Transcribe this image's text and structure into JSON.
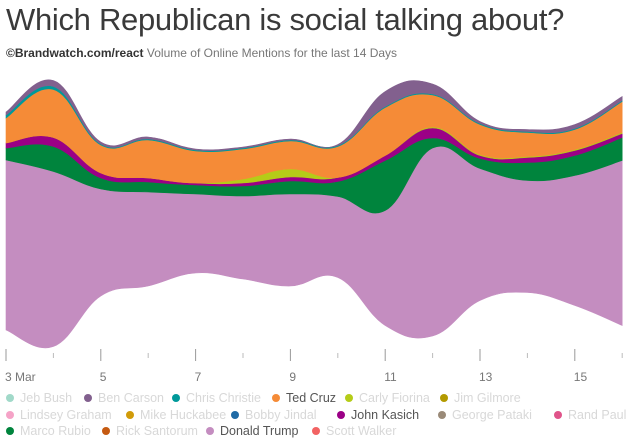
{
  "header": {
    "title": "Which Republican is social talking about?",
    "source": "©Brandwatch.com/react",
    "subtitle": "Volume of Online Mentions for the last 14 Days"
  },
  "chart_data": {
    "type": "area",
    "subtype": "streamgraph",
    "title": "Which Republican is social talking about?",
    "subtitle": "Volume of Online Mentions for the last 14 Days",
    "xlabel": "",
    "ylabel": "",
    "x": [
      "3 Mar",
      "4",
      "5",
      "6",
      "7",
      "8",
      "9",
      "10",
      "11",
      "12",
      "13",
      "14",
      "15",
      "16"
    ],
    "tick_labels": [
      "3 Mar",
      "5",
      "7",
      "9",
      "11",
      "13",
      "15"
    ],
    "grid": false,
    "legend_position": "bottom",
    "series": [
      {
        "name": "Donald Trump",
        "color": "#c48dc0",
        "active": true,
        "values": [
          170,
          175,
          107,
          94,
          79,
          83,
          92,
          81,
          115,
          188,
          132,
          112,
          130,
          165
        ]
      },
      {
        "name": "Marco Rubio",
        "color": "#00843d",
        "active": false,
        "values": [
          12,
          25,
          11,
          10,
          9,
          10,
          13,
          15,
          50,
          10,
          10,
          18,
          20,
          23
        ]
      },
      {
        "name": "John Kasich",
        "color": "#9b0086",
        "active": true,
        "values": [
          5,
          9,
          5,
          4,
          2,
          3,
          4,
          4,
          5,
          10,
          3,
          5,
          5,
          4
        ]
      },
      {
        "name": "Carly Fiorina",
        "color": "#b5cc18",
        "active": false,
        "values": [
          0,
          0,
          0,
          0,
          0,
          4,
          8,
          0,
          0,
          1,
          1,
          1,
          1,
          1
        ]
      },
      {
        "name": "Ted Cruz",
        "color": "#f58b37",
        "active": true,
        "values": [
          25,
          48,
          28,
          38,
          32,
          30,
          28,
          31,
          48,
          32,
          30,
          24,
          20,
          31
        ]
      },
      {
        "name": "Chris Christie",
        "color": "#00999a",
        "active": false,
        "values": [
          3,
          3,
          1,
          1,
          1,
          1,
          1,
          1,
          1,
          1,
          1,
          1,
          1,
          1
        ]
      },
      {
        "name": "Ben Carson",
        "color": "#82608e",
        "active": false,
        "values": [
          3,
          6,
          2,
          2,
          1,
          1,
          1,
          1,
          15,
          10,
          2,
          2,
          4,
          4
        ]
      }
    ],
    "legend": [
      {
        "name": "Jeb Bush",
        "color": "#a1d9c9",
        "active": false
      },
      {
        "name": "Ben Carson",
        "color": "#82608e",
        "active": false
      },
      {
        "name": "Chris Christie",
        "color": "#00999a",
        "active": false
      },
      {
        "name": "Ted Cruz",
        "color": "#f58b37",
        "active": true
      },
      {
        "name": "Carly Fiorina",
        "color": "#b5cc18",
        "active": false
      },
      {
        "name": "Jim Gilmore",
        "color": "#b39a00",
        "active": false
      },
      {
        "name": "Lindsey Graham",
        "color": "#f5a3c7",
        "active": false
      },
      {
        "name": "Mike Huckabee",
        "color": "#d19b09",
        "active": false
      },
      {
        "name": "Bobby Jindal",
        "color": "#1f6aa5",
        "active": false
      },
      {
        "name": "John Kasich",
        "color": "#9b0086",
        "active": true
      },
      {
        "name": "George Pataki",
        "color": "#9a8a78",
        "active": false
      },
      {
        "name": "Rand Paul",
        "color": "#e0548a",
        "active": false
      },
      {
        "name": "Marco Rubio",
        "color": "#00843d",
        "active": false
      },
      {
        "name": "Rick Santorum",
        "color": "#c55a11",
        "active": false
      },
      {
        "name": "Donald Trump",
        "color": "#c48dc0",
        "active": true
      },
      {
        "name": "Scott Walker",
        "color": "#f26363",
        "active": false
      }
    ]
  }
}
